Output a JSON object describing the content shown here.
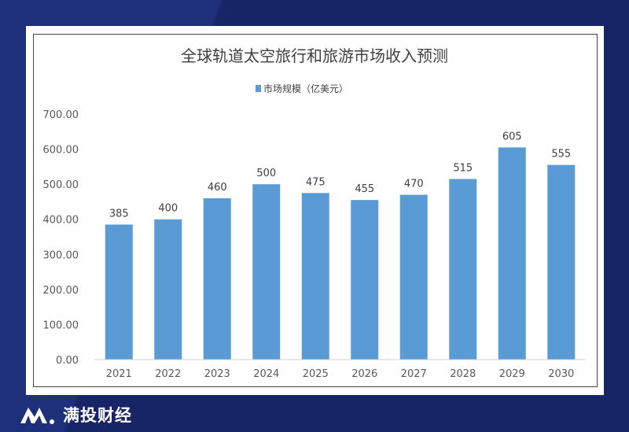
{
  "brand": {
    "name": "满投财经"
  },
  "chart_data": {
    "type": "bar",
    "title": "全球轨道太空旅行和旅游市场收入预测",
    "legend": {
      "entries": [
        "市场规模（亿美元）"
      ],
      "position": "top"
    },
    "categories": [
      "2021",
      "2022",
      "2023",
      "2024",
      "2025",
      "2026",
      "2027",
      "2028",
      "2029",
      "2030"
    ],
    "series": [
      {
        "name": "市场规模（亿美元）",
        "values": [
          385,
          400,
          460,
          500,
          475,
          455,
          470,
          515,
          605,
          555
        ],
        "color": "#5b9bd5"
      }
    ],
    "data_labels": [
      "385",
      "400",
      "460",
      "500",
      "475",
      "455",
      "470",
      "515",
      "605",
      "555"
    ],
    "yticks": [
      "0.00",
      "100.00",
      "200.00",
      "300.00",
      "400.00",
      "500.00",
      "600.00",
      "700.00"
    ],
    "ylim": [
      0,
      700
    ],
    "grid": false,
    "xlabel": "",
    "ylabel": ""
  }
}
